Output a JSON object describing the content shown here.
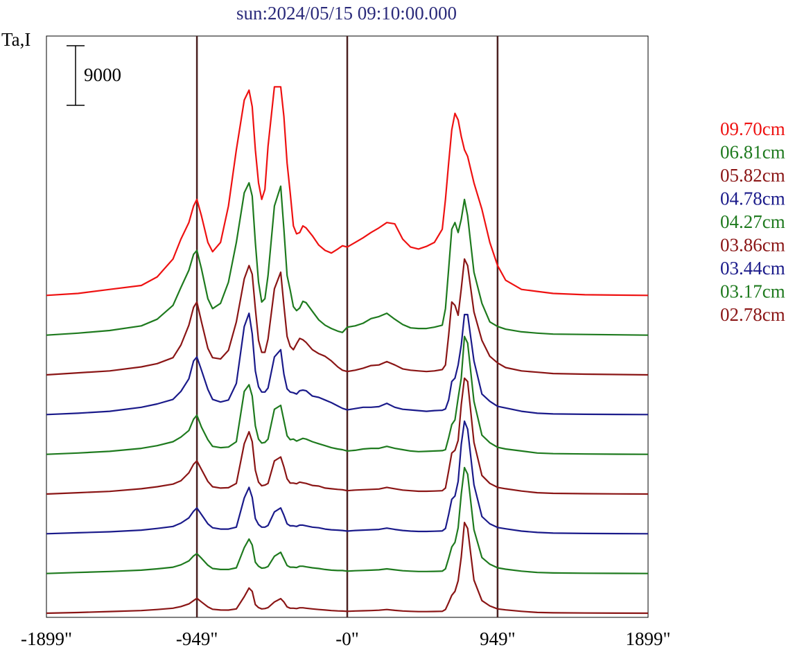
{
  "chart_data": {
    "type": "line",
    "title": "sun:2024/05/15 09:10:00.000",
    "ylabel": "Ta,I",
    "xlabel": "",
    "scale_bar_label": "9000",
    "scale_bar_value": 9000,
    "xlim": [
      -1899,
      1899
    ],
    "x_ticks": [
      {
        "value": -1899,
        "label": "-1899\""
      },
      {
        "value": -949,
        "label": "-949\""
      },
      {
        "value": 0,
        "label": "-0\""
      },
      {
        "value": 949,
        "label": "949\""
      },
      {
        "value": 1899,
        "label": "1899\""
      }
    ],
    "vertical_markers": [
      -949,
      0,
      949
    ],
    "marker_color": "#4a2020",
    "stack_offset": 6000,
    "legend_position": "right",
    "x": [
      -1899,
      -1700,
      -1500,
      -1300,
      -1200,
      -1100,
      -1050,
      -1000,
      -970,
      -949,
      -920,
      -880,
      -850,
      -800,
      -750,
      -700,
      -650,
      -620,
      -600,
      -580,
      -560,
      -540,
      -520,
      -500,
      -460,
      -420,
      -400,
      -380,
      -360,
      -340,
      -320,
      -300,
      -280,
      -260,
      -220,
      -180,
      -140,
      -100,
      -60,
      -30,
      0,
      50,
      100,
      150,
      200,
      250,
      300,
      350,
      400,
      450,
      500,
      550,
      600,
      620,
      640,
      660,
      680,
      700,
      720,
      740,
      760,
      800,
      850,
      900,
      949,
      1000,
      1100,
      1200,
      1300,
      1500,
      1700,
      1899
    ],
    "series": [
      {
        "name": "09.70cm",
        "color": "#ee1111",
        "values": [
          0,
          300,
          900,
          1500,
          2800,
          5500,
          8500,
          11000,
          13500,
          14500,
          12000,
          8000,
          6600,
          8000,
          13500,
          22000,
          29500,
          31000,
          28500,
          22000,
          17000,
          14500,
          16000,
          22500,
          31500,
          31500,
          27000,
          20000,
          15500,
          10500,
          9300,
          9500,
          10500,
          10200,
          9000,
          7600,
          6800,
          6400,
          7000,
          7500,
          7300,
          8000,
          8700,
          9500,
          10200,
          11000,
          10800,
          8500,
          7300,
          7000,
          7400,
          8000,
          10000,
          14500,
          20000,
          25000,
          27500,
          26500,
          24000,
          22000,
          21000,
          17000,
          13000,
          8000,
          4500,
          2300,
          900,
          600,
          300,
          100,
          50,
          0
        ]
      },
      {
        "name": "06.81cm",
        "color": "#1e7a1e",
        "values": [
          0,
          300,
          700,
          1400,
          2400,
          4500,
          7200,
          9800,
          12200,
          12800,
          10000,
          5500,
          4000,
          4800,
          8000,
          14000,
          21500,
          23000,
          21000,
          14000,
          8000,
          5000,
          5500,
          9000,
          19500,
          22500,
          16000,
          9000,
          6800,
          4300,
          3700,
          4100,
          5100,
          4900,
          3600,
          2300,
          1500,
          1000,
          600,
          400,
          1200,
          1400,
          1800,
          2500,
          2800,
          3300,
          2400,
          1600,
          1100,
          1000,
          1000,
          1200,
          1500,
          4000,
          10000,
          16000,
          17000,
          15500,
          17500,
          20500,
          18000,
          9500,
          4800,
          2000,
          1300,
          900,
          500,
          300,
          150,
          100,
          50,
          0
        ]
      },
      {
        "name": "05.82cm",
        "color": "#8a1515",
        "values": [
          0,
          300,
          600,
          1200,
          1700,
          2600,
          4500,
          7500,
          10200,
          11000,
          8000,
          4000,
          2600,
          2400,
          3700,
          8000,
          14500,
          16500,
          15200,
          10000,
          5200,
          3400,
          3400,
          5400,
          13000,
          15500,
          10500,
          5800,
          4300,
          3800,
          4700,
          5500,
          5300,
          4900,
          3800,
          3200,
          2800,
          2100,
          1200,
          700,
          500,
          700,
          1000,
          1400,
          1500,
          2000,
          1500,
          900,
          700,
          600,
          500,
          600,
          800,
          1500,
          6000,
          11000,
          10500,
          9000,
          13000,
          17500,
          16500,
          9500,
          5200,
          2800,
          1800,
          1100,
          600,
          400,
          200,
          100,
          50,
          0
        ]
      },
      {
        "name": "04.78cm",
        "color": "#1a1a8a",
        "values": [
          0,
          200,
          500,
          1100,
          1600,
          2300,
          3500,
          5400,
          8100,
          8700,
          6700,
          3800,
          2300,
          1900,
          2200,
          4700,
          13300,
          15300,
          12200,
          6600,
          4200,
          3400,
          3400,
          4000,
          8700,
          9800,
          6100,
          3900,
          3400,
          3300,
          3100,
          3600,
          3700,
          3600,
          2800,
          2600,
          2200,
          1800,
          1300,
          950,
          700,
          900,
          1100,
          1100,
          1200,
          1700,
          1100,
          800,
          700,
          600,
          500,
          600,
          650,
          850,
          2200,
          5000,
          5500,
          7500,
          10500,
          15100,
          15100,
          8100,
          3100,
          2000,
          1250,
          1000,
          500,
          200,
          100,
          50,
          20,
          0
        ]
      },
      {
        "name": "04.27cm",
        "color": "#1e7a1e",
        "values": [
          0,
          200,
          450,
          900,
          1300,
          1900,
          2600,
          3600,
          5300,
          5900,
          4100,
          2200,
          1200,
          1000,
          1100,
          1900,
          9500,
          10500,
          8800,
          4300,
          2300,
          1700,
          1800,
          2300,
          6800,
          7400,
          5100,
          2800,
          2200,
          2300,
          2000,
          2200,
          2400,
          2300,
          1900,
          1600,
          1300,
          1000,
          800,
          700,
          500,
          600,
          800,
          900,
          900,
          1200,
          900,
          700,
          500,
          400,
          450,
          500,
          550,
          700,
          2500,
          4500,
          5200,
          8500,
          11500,
          17800,
          16800,
          8000,
          2900,
          1750,
          1050,
          800,
          500,
          200,
          100,
          50,
          20,
          0
        ]
      },
      {
        "name": "03.86cm",
        "color": "#8a1515",
        "values": [
          0,
          200,
          400,
          800,
          1100,
          1500,
          2000,
          3200,
          4500,
          5000,
          3700,
          1900,
          1100,
          900,
          950,
          1600,
          7600,
          9400,
          7900,
          3600,
          1800,
          1250,
          1350,
          1600,
          5000,
          5600,
          4100,
          2300,
          1650,
          1650,
          1550,
          1800,
          1700,
          1600,
          1300,
          1200,
          900,
          800,
          700,
          650,
          500,
          600,
          650,
          700,
          750,
          1000,
          800,
          600,
          500,
          420,
          420,
          450,
          500,
          900,
          3500,
          6200,
          6600,
          8100,
          13500,
          17500,
          17000,
          7800,
          2800,
          1600,
          1000,
          800,
          450,
          200,
          100,
          50,
          20,
          0
        ]
      },
      {
        "name": "03.44cm",
        "color": "#1a1a8a",
        "values": [
          0,
          150,
          300,
          550,
          800,
          1100,
          1600,
          2400,
          3400,
          3900,
          2900,
          1500,
          900,
          700,
          700,
          1000,
          5400,
          7000,
          5500,
          2300,
          1400,
          1000,
          1000,
          1250,
          3300,
          3900,
          2800,
          1500,
          1200,
          1200,
          1100,
          1300,
          1300,
          1200,
          1000,
          900,
          700,
          600,
          550,
          500,
          400,
          500,
          550,
          600,
          650,
          850,
          650,
          500,
          400,
          350,
          350,
          380,
          420,
          800,
          2900,
          5200,
          5700,
          7900,
          13500,
          17000,
          15800,
          7400,
          2600,
          1500,
          950,
          750,
          400,
          200,
          100,
          50,
          20,
          0
        ]
      },
      {
        "name": "03.17cm",
        "color": "#1e7a1e",
        "values": [
          0,
          150,
          300,
          500,
          700,
          950,
          1300,
          1900,
          2650,
          3000,
          2300,
          1250,
          750,
          600,
          600,
          850,
          3900,
          5200,
          4300,
          1700,
          1100,
          800,
          850,
          1050,
          2600,
          3200,
          2200,
          1200,
          950,
          950,
          900,
          1100,
          1100,
          1000,
          850,
          750,
          600,
          500,
          450,
          450,
          350,
          420,
          460,
          500,
          550,
          700,
          550,
          420,
          350,
          300,
          300,
          320,
          350,
          700,
          2300,
          4000,
          4700,
          6900,
          12000,
          16000,
          15000,
          6600,
          2400,
          1400,
          850,
          650,
          350,
          150,
          80,
          40,
          20,
          0
        ]
      },
      {
        "name": "02.78cm",
        "color": "#8a1515",
        "values": [
          0,
          100,
          250,
          400,
          550,
          750,
          1000,
          1400,
          1900,
          2250,
          1700,
          950,
          600,
          480,
          470,
          650,
          2500,
          3800,
          3300,
          1300,
          850,
          650,
          700,
          850,
          1700,
          2200,
          1700,
          950,
          750,
          750,
          700,
          820,
          820,
          750,
          650,
          550,
          480,
          400,
          350,
          320,
          280,
          330,
          370,
          400,
          450,
          550,
          430,
          330,
          280,
          240,
          240,
          260,
          280,
          550,
          1600,
          2700,
          3300,
          4900,
          8500,
          13700,
          12800,
          5000,
          1900,
          1100,
          650,
          500,
          280,
          120,
          60,
          30,
          15,
          0
        ]
      }
    ]
  }
}
